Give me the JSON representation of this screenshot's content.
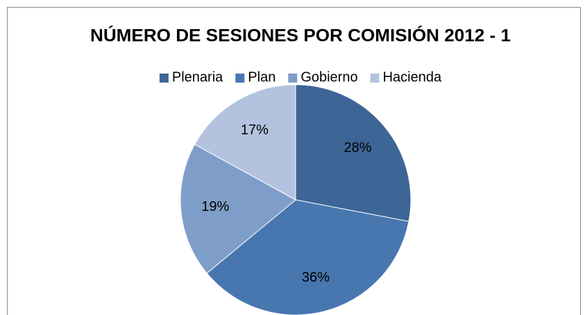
{
  "chart_data": {
    "type": "pie",
    "title": "NÚMERO DE SESIONES POR COMISIÓN 2012 - 1",
    "categories": [
      "Plenaria",
      "Plan",
      "Gobierno",
      "Hacienda"
    ],
    "values": [
      28,
      36,
      19,
      17
    ],
    "value_labels": [
      "28%",
      "36%",
      "19%",
      "17%"
    ],
    "colors": [
      "#3d6596",
      "#4877b0",
      "#7f9dc9",
      "#b3c3df"
    ],
    "legend": "top"
  }
}
